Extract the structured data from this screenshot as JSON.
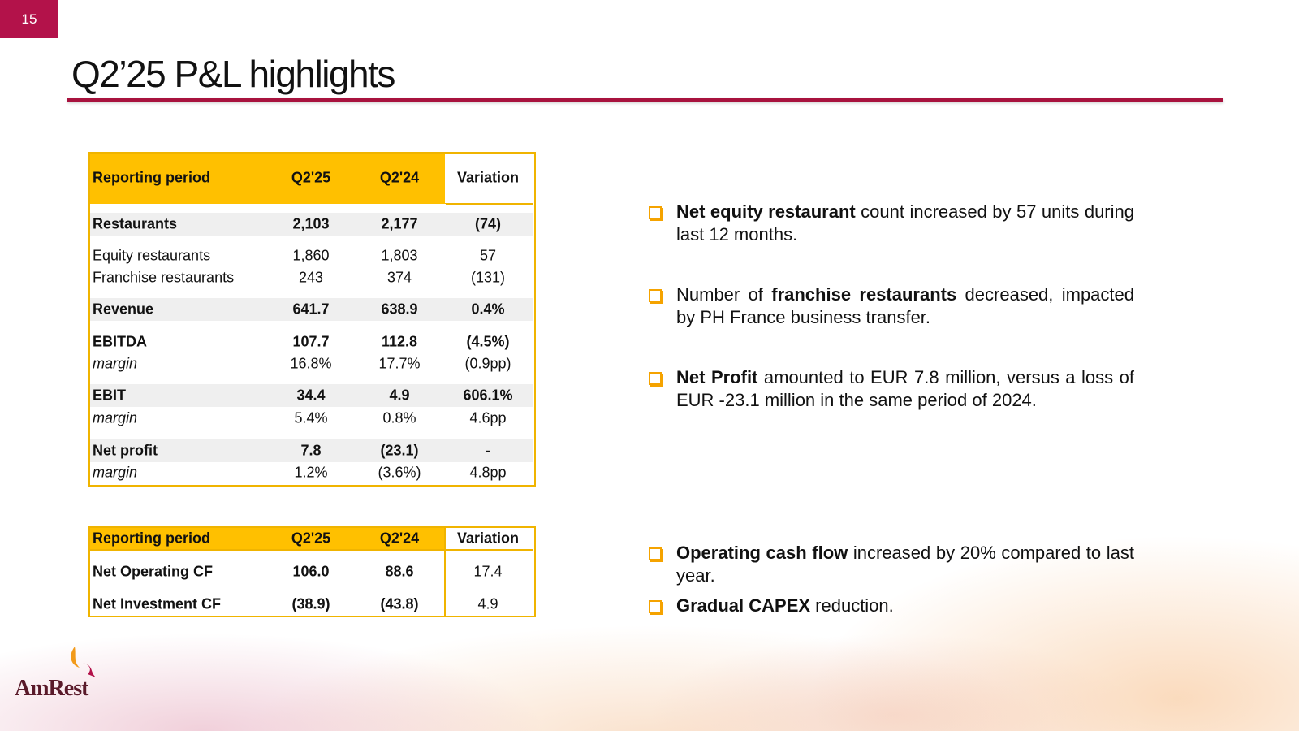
{
  "page_number": "15",
  "title": "Q2’25 P&L highlights",
  "table1": {
    "header": [
      "Reporting period",
      "Q2'25",
      "Q2'24",
      "Variation"
    ],
    "rows": [
      {
        "style": "bold",
        "shaded": true,
        "cells": [
          "Restaurants",
          "2,103",
          "2,177",
          "(74)"
        ]
      },
      {
        "style": "normal",
        "shaded": false,
        "cells": [
          "Equity restaurants",
          "1,860",
          "1,803",
          "57"
        ]
      },
      {
        "style": "normal",
        "shaded": false,
        "cells": [
          "Franchise restaurants",
          "243",
          "374",
          "(131)"
        ]
      },
      {
        "style": "bold",
        "shaded": true,
        "cells": [
          "Revenue",
          "641.7",
          "638.9",
          "0.4%"
        ]
      },
      {
        "style": "bold",
        "shaded": false,
        "cells": [
          "EBITDA",
          "107.7",
          "112.8",
          "(4.5%)"
        ]
      },
      {
        "style": "italic",
        "shaded": false,
        "cells": [
          "margin",
          "16.8%",
          "17.7%",
          "(0.9pp)"
        ]
      },
      {
        "style": "bold",
        "shaded": true,
        "cells": [
          "EBIT",
          "34.4",
          "4.9",
          "606.1%"
        ]
      },
      {
        "style": "italic",
        "shaded": false,
        "cells": [
          "margin",
          "5.4%",
          "0.8%",
          "4.6pp"
        ]
      },
      {
        "style": "bold",
        "shaded": true,
        "cells": [
          "Net profit",
          "7.8",
          "(23.1)",
          "-"
        ]
      },
      {
        "style": "italic",
        "shaded": false,
        "cells": [
          "margin",
          "1.2%",
          "(3.6%)",
          "4.8pp"
        ]
      }
    ]
  },
  "table2": {
    "header": [
      "Reporting period",
      "Q2'25",
      "Q2'24",
      "Variation"
    ],
    "rows": [
      {
        "cells": [
          "Net Operating CF",
          "106.0",
          "88.6",
          "17.4"
        ]
      },
      {
        "cells": [
          "Net Investment CF",
          "(38.9)",
          "(43.8)",
          "4.9"
        ]
      }
    ]
  },
  "bullets": [
    [
      {
        "text": "Net equity restaurant",
        "bold": true
      },
      {
        "text": " count increased by 57 units during last 12 months.",
        "bold": false
      }
    ],
    [
      {
        "text": "Number of ",
        "bold": false
      },
      {
        "text": "franchise restaurants",
        "bold": true
      },
      {
        "text": " decreased, impacted by PH France business transfer.",
        "bold": false
      }
    ],
    [
      {
        "text": "Net Profit",
        "bold": true
      },
      {
        "text": " amounted to EUR 7.8 million, versus a loss of EUR -23.1 million in the same period of 2024.",
        "bold": false
      }
    ],
    [
      {
        "text": "Operating cash flow",
        "bold": true
      },
      {
        "text": " increased by 20% compared to last year.",
        "bold": false
      }
    ],
    [
      {
        "text": "Gradual CAPEX",
        "bold": true
      },
      {
        "text": " reduction.",
        "bold": false
      }
    ]
  ],
  "logo": "AmRest"
}
